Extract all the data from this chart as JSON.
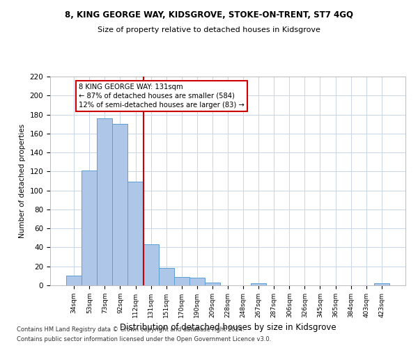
{
  "title1": "8, KING GEORGE WAY, KIDSGROVE, STOKE-ON-TRENT, ST7 4GQ",
  "title2": "Size of property relative to detached houses in Kidsgrove",
  "xlabel": "Distribution of detached houses by size in Kidsgrove",
  "ylabel": "Number of detached properties",
  "categories": [
    "34sqm",
    "53sqm",
    "73sqm",
    "92sqm",
    "112sqm",
    "131sqm",
    "151sqm",
    "170sqm",
    "190sqm",
    "209sqm",
    "228sqm",
    "248sqm",
    "267sqm",
    "287sqm",
    "306sqm",
    "326sqm",
    "345sqm",
    "365sqm",
    "384sqm",
    "403sqm",
    "423sqm"
  ],
  "values": [
    10,
    121,
    176,
    170,
    109,
    43,
    18,
    9,
    8,
    3,
    0,
    0,
    2,
    0,
    0,
    0,
    0,
    0,
    0,
    0,
    2
  ],
  "bar_color": "#aec6e8",
  "bar_edge_color": "#5a9fd4",
  "highlight_line_index": 5,
  "highlight_line_color": "#cc0000",
  "annotation_text": "8 KING GEORGE WAY: 131sqm\n← 87% of detached houses are smaller (584)\n12% of semi-detached houses are larger (83) →",
  "annotation_box_color": "#cc0000",
  "ylim": [
    0,
    220
  ],
  "yticks": [
    0,
    20,
    40,
    60,
    80,
    100,
    120,
    140,
    160,
    180,
    200,
    220
  ],
  "footer1": "Contains HM Land Registry data © Crown copyright and database right 2024.",
  "footer2": "Contains public sector information licensed under the Open Government Licence v3.0.",
  "background_color": "#ffffff",
  "grid_color": "#c8d4e8"
}
